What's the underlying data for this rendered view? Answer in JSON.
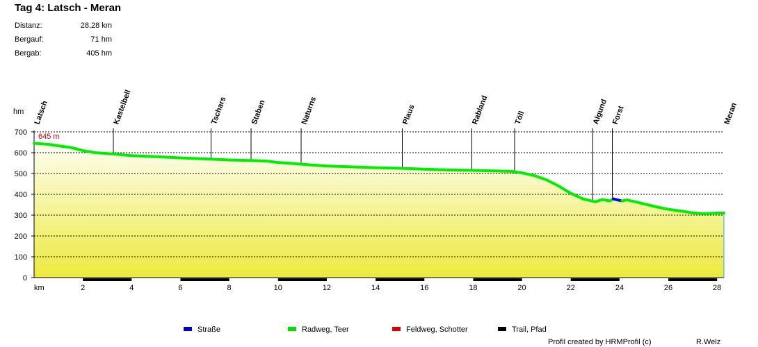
{
  "header": {
    "title": "Tag 4: Latsch - Meran",
    "stats": [
      {
        "label": "Distanz:",
        "value": "28,28 km"
      },
      {
        "label": "Bergauf:",
        "value": "71 hm"
      },
      {
        "label": "Bergab:",
        "value": "405 hm"
      }
    ]
  },
  "chart_data": {
    "type": "area",
    "title": "Tag 4: Latsch - Meran",
    "xlabel": "km",
    "ylabel": "hm",
    "xlim": [
      0,
      28.28
    ],
    "ylim": [
      0,
      700
    ],
    "xticks": [
      2,
      4,
      6,
      8,
      10,
      12,
      14,
      16,
      18,
      20,
      22,
      24,
      26,
      28
    ],
    "yticks": [
      0,
      100,
      200,
      300,
      400,
      500,
      600,
      700
    ],
    "grid": true,
    "start_annotation": "645 m",
    "series": [
      {
        "name": "Radweg, Teer",
        "color": "#00ee00",
        "x": [
          0,
          0.6,
          1.0,
          1.5,
          2.0,
          2.5,
          3.2,
          4.0,
          5.0,
          6.0,
          7.2,
          8.0,
          9.0,
          9.5,
          10.0,
          10.5,
          11.0,
          12.0,
          13.0,
          14.0,
          15.0,
          16.0,
          17.0,
          18.0,
          19.0,
          19.6,
          20.0,
          20.5,
          21.0,
          21.5,
          22.0,
          22.5,
          23.0,
          23.3,
          23.6,
          23.75
        ],
        "y": [
          645,
          640,
          633,
          625,
          610,
          600,
          594,
          586,
          581,
          575,
          569,
          565,
          562,
          560,
          553,
          549,
          544,
          536,
          532,
          528,
          525,
          521,
          517,
          515,
          512,
          510,
          503,
          490,
          470,
          440,
          405,
          378,
          364,
          375,
          368,
          378
        ]
      },
      {
        "name": "Straße",
        "color": "#0000ee",
        "x": [
          23.75,
          24.1
        ],
        "y": [
          378,
          368
        ]
      },
      {
        "name": "Radweg, Teer",
        "color": "#00ee00",
        "x": [
          24.1,
          24.3,
          24.8,
          25.5,
          26.0,
          26.5,
          27.0,
          27.5,
          28.0,
          28.28
        ],
        "y": [
          368,
          373,
          360,
          340,
          328,
          320,
          311,
          307,
          310,
          310
        ]
      }
    ],
    "waypoints": [
      {
        "name": "Latsch",
        "km": 0
      },
      {
        "name": "Kastelbell",
        "km": 3.25
      },
      {
        "name": "Tschars",
        "km": 7.25
      },
      {
        "name": "Staben",
        "km": 8.9
      },
      {
        "name": "Naturns",
        "km": 10.95
      },
      {
        "name": "Plaus",
        "km": 15.1
      },
      {
        "name": "Rabland",
        "km": 17.95
      },
      {
        "name": "Töll",
        "km": 19.7
      },
      {
        "name": "Algund",
        "km": 22.9
      },
      {
        "name": "Forst",
        "km": 23.7
      },
      {
        "name": "Meran",
        "km": 28.28
      }
    ],
    "legend": [
      {
        "label": "Straße",
        "color": "#0000cc"
      },
      {
        "label": "Radweg, Teer",
        "color": "#00dd00"
      },
      {
        "label": "Feldweg, Schotter",
        "color": "#dd0000"
      },
      {
        "label": "Trail, Pfad",
        "color": "#000000"
      }
    ],
    "legend_position": "bottom"
  },
  "footer": {
    "credit": "Profil created by HRMProfil (c)",
    "author": "R.Welz"
  }
}
